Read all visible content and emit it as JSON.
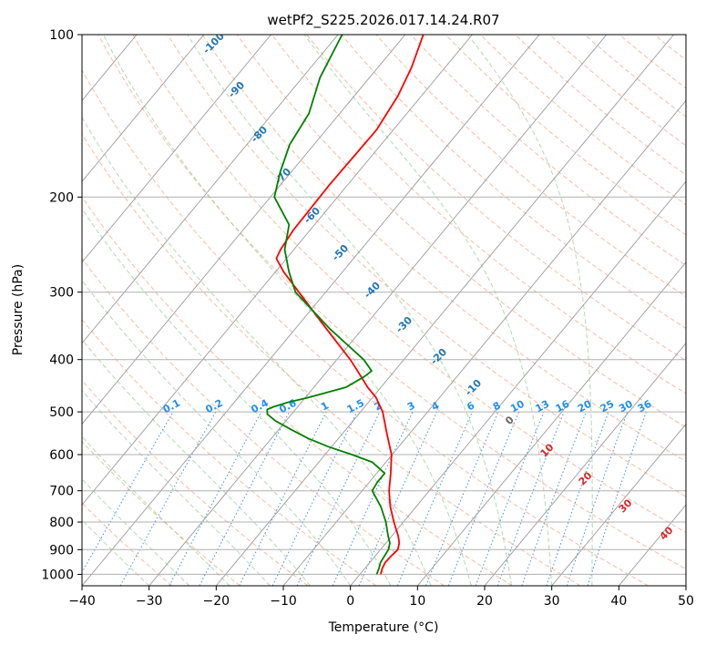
{
  "chart_data": {
    "type": "line",
    "subtype": "skew-t log-p diagram",
    "title": "wetPf2_S225.2026.017.14.24.R07",
    "xlabel": "Temperature (°C)",
    "ylabel": "Pressure (hPa)",
    "xlim": [
      -40,
      50
    ],
    "ylim": [
      1050,
      100
    ],
    "x_ticks": [
      -40,
      -30,
      -20,
      -10,
      0,
      10,
      20,
      30,
      40,
      50
    ],
    "x_tick_labels": [
      "−40",
      "−30",
      "−20",
      "−10",
      "0",
      "10",
      "20",
      "30",
      "40",
      "50"
    ],
    "y_ticks": [
      1000,
      900,
      800,
      700,
      600,
      500,
      400,
      300,
      200,
      100
    ],
    "y_tick_labels": [
      "1000",
      "900",
      "800",
      "700",
      "600",
      "500",
      "400",
      "300",
      "200",
      "100"
    ],
    "grid": true,
    "dry_adiabat_labels": [
      -100,
      -90,
      -80,
      -70,
      -60,
      -50,
      -40,
      -30,
      -20,
      -10
    ],
    "moist_adiabat_labels": [
      0,
      10,
      20,
      30,
      40
    ],
    "mixing_ratio_labels": [
      "0.1",
      "0.2",
      "0.4",
      "0.6",
      "1",
      "1.5",
      "2",
      "3",
      "4",
      "6",
      "8",
      "10",
      "13",
      "16",
      "20",
      "25",
      "30",
      "36"
    ],
    "series": [
      {
        "name": "Temperature",
        "color": "#ff0000",
        "pressure": [
          1000,
          975,
          950,
          925,
          900,
          875,
          850,
          800,
          750,
          700,
          650,
          600,
          550,
          500,
          470,
          450,
          420,
          400,
          350,
          300,
          275,
          260,
          250,
          230,
          210,
          190,
          170,
          150,
          130,
          115,
          100
        ],
        "values": [
          3.1,
          2.6,
          2.3,
          2.4,
          2.6,
          2.0,
          1.0,
          -1.4,
          -3.8,
          -6.0,
          -7.9,
          -10.1,
          -13.3,
          -16.7,
          -19.5,
          -22.0,
          -25.5,
          -28.0,
          -35.5,
          -44.0,
          -48.8,
          -51.5,
          -52.0,
          -52.5,
          -52.6,
          -52.7,
          -52.6,
          -52.5,
          -53.5,
          -55.0,
          -57.3
        ]
      },
      {
        "name": "Dewpoint",
        "color": "#008000",
        "pressure": [
          1000,
          975,
          950,
          925,
          900,
          875,
          850,
          800,
          750,
          700,
          675,
          650,
          620,
          600,
          580,
          560,
          540,
          520,
          505,
          495,
          490,
          480,
          470,
          450,
          430,
          420,
          400,
          350,
          300,
          275,
          250,
          235,
          225,
          200,
          180,
          160,
          140,
          120,
          100
        ],
        "values": [
          2.5,
          2.1,
          1.6,
          1.4,
          1.2,
          0.6,
          -0.5,
          -2.6,
          -5.2,
          -8.5,
          -8.8,
          -8.8,
          -12.0,
          -16.0,
          -20.5,
          -24.5,
          -28.0,
          -31.5,
          -33.6,
          -34.2,
          -33.7,
          -32.0,
          -29.5,
          -25.2,
          -23.8,
          -23.4,
          -26.0,
          -35.0,
          -44.5,
          -48.0,
          -51.4,
          -52.8,
          -53.8,
          -59.4,
          -61.6,
          -63.6,
          -64.6,
          -67.4,
          -69.4
        ]
      }
    ]
  }
}
